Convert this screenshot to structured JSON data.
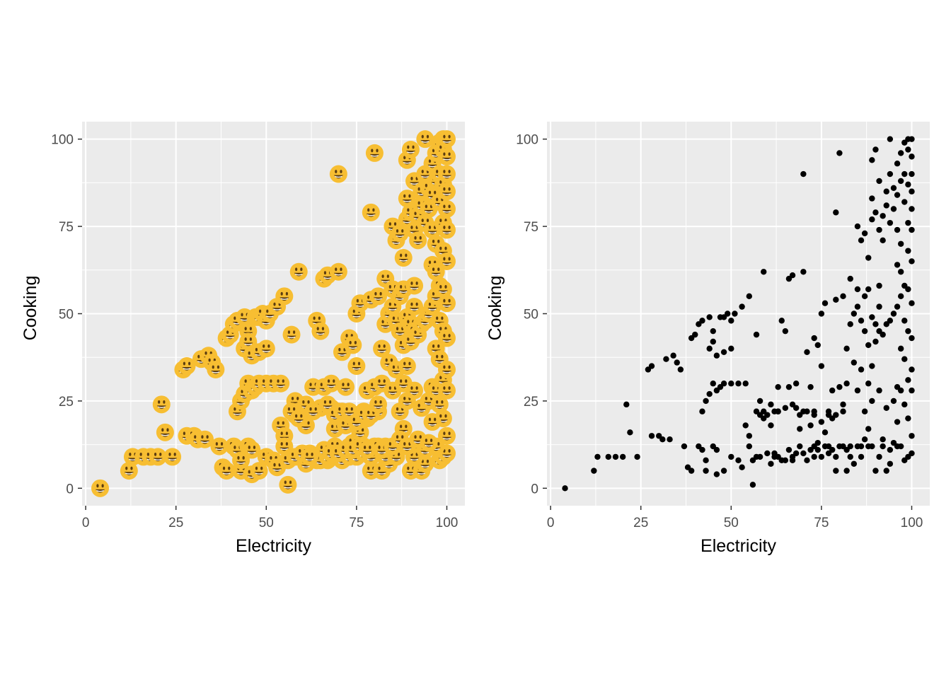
{
  "colors": {
    "panel_background": "#EBEBEB",
    "grid_line": "#FFFFFF",
    "tick_label": "#4D4D4D",
    "axis_title": "#000000",
    "emoji_fill": "#F7BE32",
    "emoji_face": "#5C3D10",
    "point_fill": "#000000"
  },
  "chart_data": [
    {
      "type": "scatter",
      "marker": "grinning-face-emoji",
      "xlabel": "Electricity",
      "ylabel": "Cooking",
      "xlim": [
        -1,
        105
      ],
      "ylim": [
        -5,
        105
      ],
      "xticks": [
        "0",
        "25",
        "50",
        "75",
        "100"
      ],
      "yticks": [
        "0",
        "25",
        "50",
        "75",
        "100"
      ],
      "grid": true,
      "points": [
        [
          4,
          0
        ],
        [
          12,
          5
        ],
        [
          13,
          9
        ],
        [
          16,
          9
        ],
        [
          18,
          9
        ],
        [
          20,
          9
        ],
        [
          21,
          24
        ],
        [
          22,
          16
        ],
        [
          24,
          9
        ],
        [
          27,
          34
        ],
        [
          28,
          35
        ],
        [
          28,
          15
        ],
        [
          30,
          15
        ],
        [
          31,
          14
        ],
        [
          32,
          37
        ],
        [
          33,
          14
        ],
        [
          34,
          38
        ],
        [
          35,
          36
        ],
        [
          36,
          34
        ],
        [
          37,
          12
        ],
        [
          38,
          6
        ],
        [
          39,
          5
        ],
        [
          39,
          43
        ],
        [
          40,
          44
        ],
        [
          41,
          47
        ],
        [
          42,
          48
        ],
        [
          41,
          12
        ],
        [
          42,
          11
        ],
        [
          43,
          5
        ],
        [
          43,
          8
        ],
        [
          44,
          49
        ],
        [
          45,
          45
        ],
        [
          45,
          12
        ],
        [
          46,
          11
        ],
        [
          47,
          49
        ],
        [
          48,
          49
        ],
        [
          49,
          50
        ],
        [
          50,
          48
        ],
        [
          51,
          50
        ],
        [
          53,
          52
        ],
        [
          55,
          55
        ],
        [
          59,
          62
        ],
        [
          42,
          22
        ],
        [
          43,
          25
        ],
        [
          44,
          27
        ],
        [
          45,
          30
        ],
        [
          46,
          28
        ],
        [
          47,
          29
        ],
        [
          48,
          30
        ],
        [
          50,
          30
        ],
        [
          52,
          30
        ],
        [
          54,
          30
        ],
        [
          44,
          40
        ],
        [
          45,
          42
        ],
        [
          46,
          38
        ],
        [
          48,
          39
        ],
        [
          50,
          40
        ],
        [
          46,
          4
        ],
        [
          48,
          5
        ],
        [
          50,
          9
        ],
        [
          52,
          8
        ],
        [
          53,
          6
        ],
        [
          54,
          18
        ],
        [
          55,
          15
        ],
        [
          55,
          12
        ],
        [
          56,
          1
        ],
        [
          57,
          9
        ],
        [
          57,
          44
        ],
        [
          58,
          25
        ],
        [
          58,
          21
        ],
        [
          59,
          22
        ],
        [
          60,
          21
        ],
        [
          61,
          7
        ],
        [
          61,
          18
        ],
        [
          62,
          22
        ],
        [
          62,
          10
        ],
        [
          63,
          22
        ],
        [
          63,
          29
        ],
        [
          64,
          8
        ],
        [
          64,
          48
        ],
        [
          65,
          23
        ],
        [
          65,
          45
        ],
        [
          66,
          60
        ],
        [
          66,
          29
        ],
        [
          67,
          61
        ],
        [
          67,
          8
        ],
        [
          68,
          23
        ],
        [
          68,
          30
        ],
        [
          69,
          17
        ],
        [
          69,
          12
        ],
        [
          70,
          62
        ],
        [
          70,
          90
        ],
        [
          70,
          22
        ],
        [
          71,
          39
        ],
        [
          71,
          8
        ],
        [
          72,
          29
        ],
        [
          72,
          18
        ],
        [
          73,
          43
        ],
        [
          73,
          21
        ],
        [
          73,
          12
        ],
        [
          74,
          41
        ],
        [
          74,
          13
        ],
        [
          75,
          35
        ],
        [
          75,
          50
        ],
        [
          76,
          53
        ],
        [
          76,
          16
        ],
        [
          77,
          22
        ],
        [
          77,
          12
        ],
        [
          78,
          28
        ],
        [
          78,
          20
        ],
        [
          79,
          54
        ],
        [
          79,
          5
        ],
        [
          79,
          79
        ],
        [
          80,
          96
        ],
        [
          80,
          12
        ],
        [
          80,
          29
        ],
        [
          81,
          55
        ],
        [
          81,
          22
        ],
        [
          81,
          12
        ],
        [
          82,
          40
        ],
        [
          82,
          30
        ],
        [
          82,
          5
        ],
        [
          83,
          60
        ],
        [
          83,
          47
        ],
        [
          83,
          12
        ],
        [
          84,
          50
        ],
        [
          84,
          7
        ],
        [
          84,
          36
        ],
        [
          85,
          75
        ],
        [
          85,
          57
        ],
        [
          85,
          52
        ],
        [
          85,
          28
        ],
        [
          86,
          71
        ],
        [
          86,
          48
        ],
        [
          86,
          34
        ],
        [
          86,
          12
        ],
        [
          87,
          73
        ],
        [
          87,
          55
        ],
        [
          87,
          45
        ],
        [
          87,
          22
        ],
        [
          88,
          66
        ],
        [
          88,
          57
        ],
        [
          88,
          41
        ],
        [
          88,
          30
        ],
        [
          88,
          17
        ],
        [
          88,
          12
        ],
        [
          89,
          83
        ],
        [
          89,
          94
        ],
        [
          89,
          77
        ],
        [
          89,
          49
        ],
        [
          89,
          35
        ],
        [
          89,
          25
        ],
        [
          90,
          97
        ],
        [
          90,
          79
        ],
        [
          90,
          47
        ],
        [
          90,
          42
        ],
        [
          90,
          5
        ],
        [
          91,
          88
        ],
        [
          91,
          74
        ],
        [
          91,
          58
        ],
        [
          91,
          52
        ],
        [
          91,
          45
        ],
        [
          91,
          28
        ],
        [
          92,
          78
        ],
        [
          92,
          71
        ],
        [
          92,
          44
        ],
        [
          92,
          12
        ],
        [
          93,
          85
        ],
        [
          93,
          81
        ],
        [
          93,
          47
        ],
        [
          93,
          23
        ],
        [
          93,
          5
        ],
        [
          94,
          100
        ],
        [
          94,
          90
        ],
        [
          94,
          76
        ],
        [
          94,
          48
        ],
        [
          94,
          7
        ],
        [
          95,
          86
        ],
        [
          95,
          80
        ],
        [
          95,
          50
        ],
        [
          95,
          25
        ],
        [
          96,
          93
        ],
        [
          96,
          84
        ],
        [
          96,
          74
        ],
        [
          96,
          64
        ],
        [
          96,
          52
        ],
        [
          96,
          29
        ],
        [
          96,
          12
        ],
        [
          97,
          96
        ],
        [
          97,
          88
        ],
        [
          97,
          70
        ],
        [
          97,
          62
        ],
        [
          97,
          55
        ],
        [
          97,
          40
        ],
        [
          97,
          28
        ],
        [
          98,
          99
        ],
        [
          98,
          90
        ],
        [
          98,
          82
        ],
        [
          98,
          58
        ],
        [
          98,
          48
        ],
        [
          98,
          37
        ],
        [
          98,
          24
        ],
        [
          98,
          8
        ],
        [
          99,
          100
        ],
        [
          99,
          97
        ],
        [
          99,
          87
        ],
        [
          99,
          76
        ],
        [
          99,
          68
        ],
        [
          99,
          57
        ],
        [
          99,
          45
        ],
        [
          99,
          31
        ],
        [
          99,
          20
        ],
        [
          99,
          9
        ],
        [
          100,
          100
        ],
        [
          100,
          95
        ],
        [
          100,
          90
        ],
        [
          100,
          85
        ],
        [
          100,
          80
        ],
        [
          100,
          74
        ],
        [
          100,
          65
        ],
        [
          100,
          53
        ],
        [
          100,
          43
        ],
        [
          100,
          34
        ],
        [
          100,
          28
        ],
        [
          100,
          15
        ],
        [
          100,
          10
        ],
        [
          57,
          22
        ],
        [
          59,
          20
        ],
        [
          61,
          24
        ],
        [
          63,
          22
        ],
        [
          67,
          24
        ],
        [
          69,
          21
        ],
        [
          71,
          22
        ],
        [
          73,
          22
        ],
        [
          75,
          19
        ],
        [
          77,
          21
        ],
        [
          79,
          21
        ],
        [
          81,
          24
        ],
        [
          63,
          9
        ],
        [
          65,
          8
        ],
        [
          67,
          9
        ],
        [
          73,
          9
        ],
        [
          75,
          9
        ],
        [
          77,
          10
        ],
        [
          79,
          9
        ],
        [
          83,
          9
        ],
        [
          86,
          9
        ],
        [
          91,
          9
        ],
        [
          94,
          11
        ],
        [
          97,
          12
        ],
        [
          56,
          8
        ],
        [
          58,
          9
        ],
        [
          60,
          10
        ],
        [
          62,
          9
        ],
        [
          66,
          11
        ],
        [
          68,
          10
        ],
        [
          70,
          10
        ],
        [
          72,
          11
        ],
        [
          74,
          11
        ],
        [
          76,
          12
        ],
        [
          78,
          11
        ],
        [
          82,
          11
        ],
        [
          85,
          12
        ],
        [
          87,
          14
        ],
        [
          89,
          12
        ],
        [
          92,
          14
        ],
        [
          95,
          13
        ],
        [
          96,
          19
        ]
      ]
    },
    {
      "type": "scatter",
      "marker": "point",
      "xlabel": "Electricity",
      "ylabel": "Cooking",
      "xlim": [
        -1,
        105
      ],
      "ylim": [
        -5,
        105
      ],
      "xticks": [
        "0",
        "25",
        "50",
        "75",
        "100"
      ],
      "yticks": [
        "0",
        "25",
        "50",
        "75",
        "100"
      ],
      "grid": true,
      "same_points_as": 0
    }
  ]
}
